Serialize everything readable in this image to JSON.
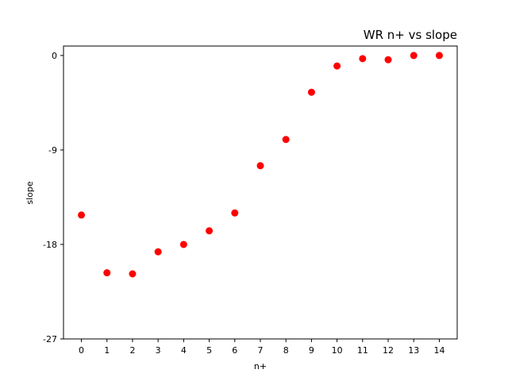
{
  "chart_data": {
    "type": "scatter",
    "title": "WR n+ vs slope",
    "xlabel": "n+",
    "ylabel": "slope",
    "x": [
      0,
      1,
      2,
      3,
      4,
      5,
      6,
      7,
      8,
      9,
      10,
      11,
      12,
      13,
      14
    ],
    "y": [
      -15.2,
      -20.7,
      -20.8,
      -18.7,
      -18.0,
      -16.7,
      -15.0,
      -10.5,
      -8.0,
      -3.5,
      -1.0,
      -0.3,
      -0.4,
      0.0,
      0.0
    ],
    "xticks": [
      "0",
      "1",
      "2",
      "3",
      "4",
      "5",
      "6",
      "7",
      "8",
      "9",
      "10",
      "11",
      "12",
      "13",
      "14"
    ],
    "xtick_values": [
      0,
      1,
      2,
      3,
      4,
      5,
      6,
      7,
      8,
      9,
      10,
      11,
      12,
      13,
      14
    ],
    "yticks": [
      "0",
      "-9",
      "-18",
      "-27"
    ],
    "ytick_values": [
      0,
      -9,
      -18,
      -27
    ],
    "xlim": [
      -0.7,
      14.7
    ],
    "ylim": [
      -27,
      0.9
    ],
    "grid": false,
    "marker_color": "#ff0000"
  }
}
